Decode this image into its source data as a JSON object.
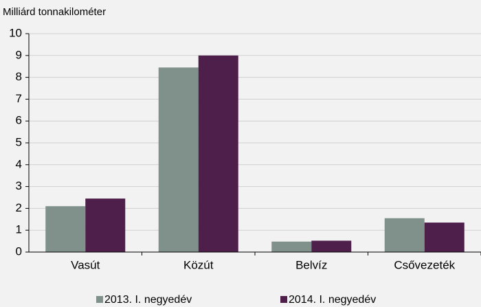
{
  "chart_data": {
    "type": "bar",
    "title": "Milliárd tonnakilométer",
    "categories": [
      "Vasút",
      "Közút",
      "Belvíz",
      "Csővezeték"
    ],
    "series": [
      {
        "name": "2013. I. negyedév",
        "color": "#7f918a",
        "values": [
          2.1,
          8.45,
          0.48,
          1.55
        ]
      },
      {
        "name": "2014. I. negyedév",
        "color": "#4f1f4b",
        "values": [
          2.45,
          9.0,
          0.52,
          1.35
        ]
      }
    ],
    "ylim": [
      0,
      10
    ],
    "yticks": [
      0,
      1,
      2,
      3,
      4,
      5,
      6,
      7,
      8,
      9,
      10
    ],
    "grid": true,
    "legend": "bottom"
  }
}
